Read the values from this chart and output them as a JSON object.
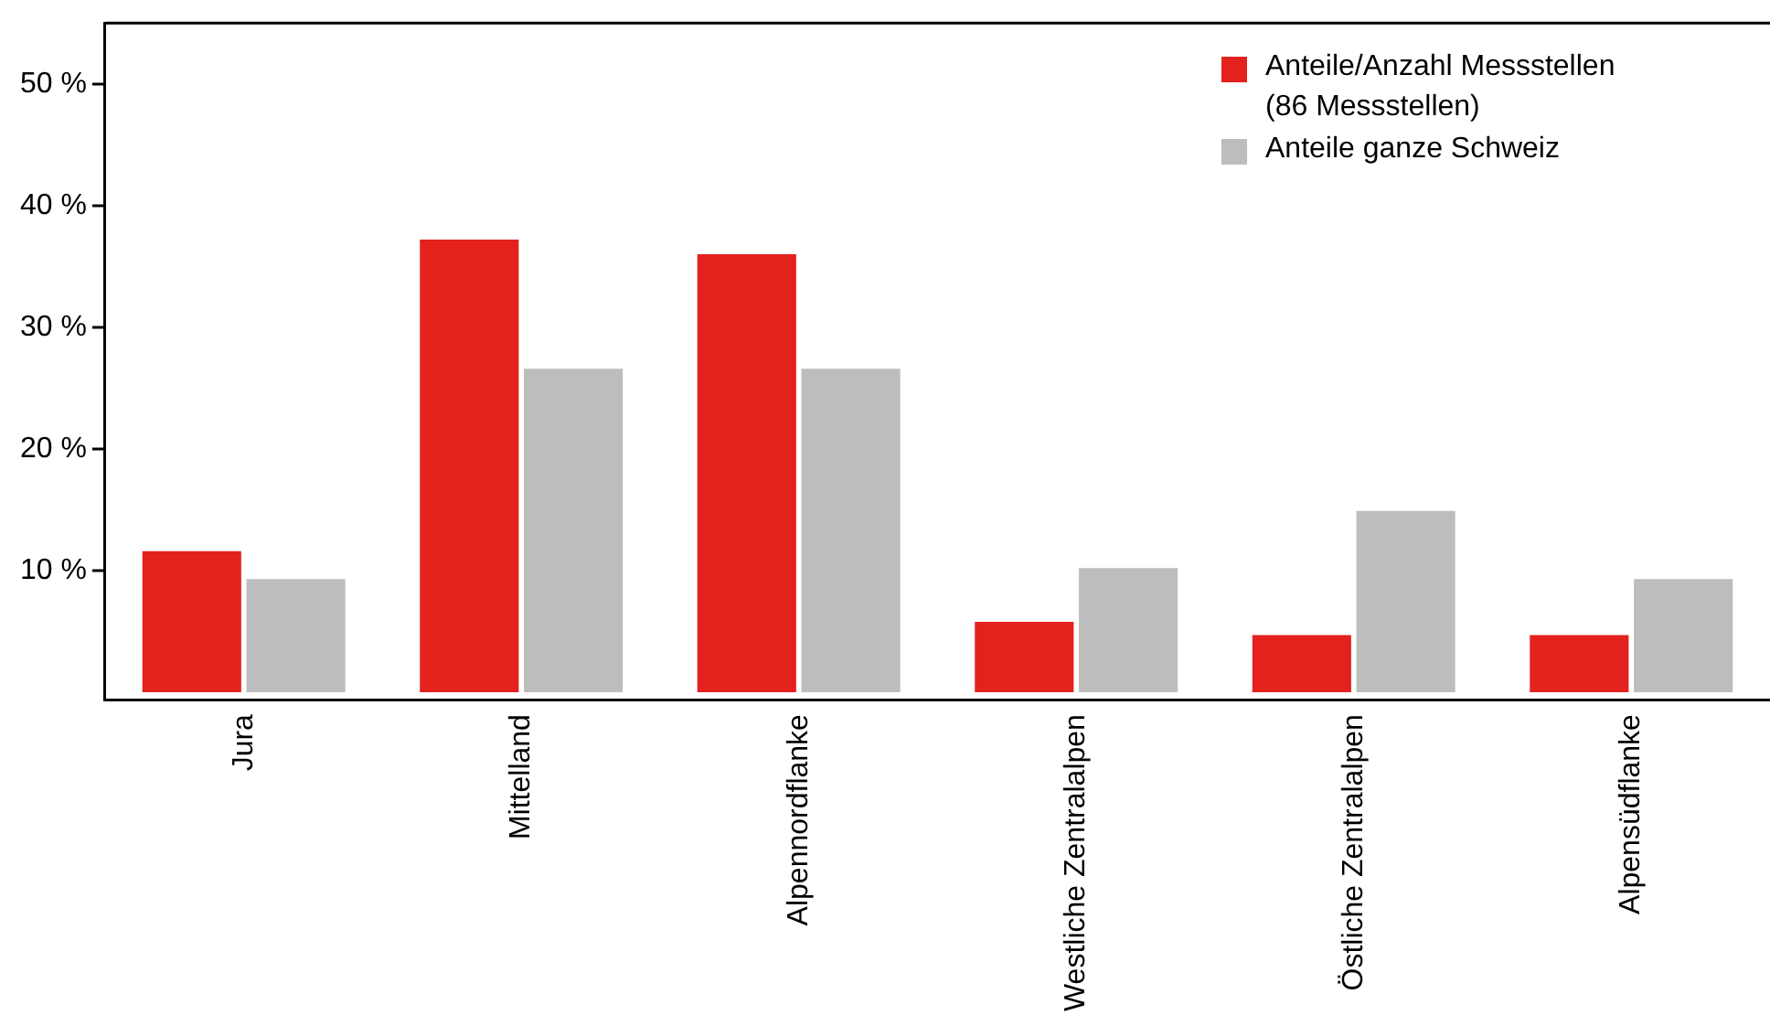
{
  "chart_data": {
    "type": "bar",
    "categories": [
      "Jura",
      "Mittelland",
      "Alpennordflanke",
      "Westliche Zentralalpen",
      "Östliche Zentralalpen",
      "Alpensüdflanke"
    ],
    "series": [
      {
        "name": "Anteile/Anzahl Messstellen\n(86 Messstellen)",
        "color": "#e3221e",
        "values": [
          11.6,
          37.2,
          36.0,
          5.8,
          4.7,
          4.7
        ]
      },
      {
        "name": "Anteile ganze Schweiz",
        "color": "#bdbdbd",
        "values": [
          9.3,
          26.6,
          26.6,
          10.2,
          14.9,
          9.3
        ]
      }
    ],
    "ylim": [
      -0.6,
      55
    ],
    "yticks": [
      {
        "value": 10,
        "label": "10 %"
      },
      {
        "value": 20,
        "label": "20 %"
      },
      {
        "value": 30,
        "label": "30 %"
      },
      {
        "value": 40,
        "label": "40 %"
      },
      {
        "value": 50,
        "label": "50 %"
      }
    ],
    "grid": false,
    "legend": "top right"
  }
}
